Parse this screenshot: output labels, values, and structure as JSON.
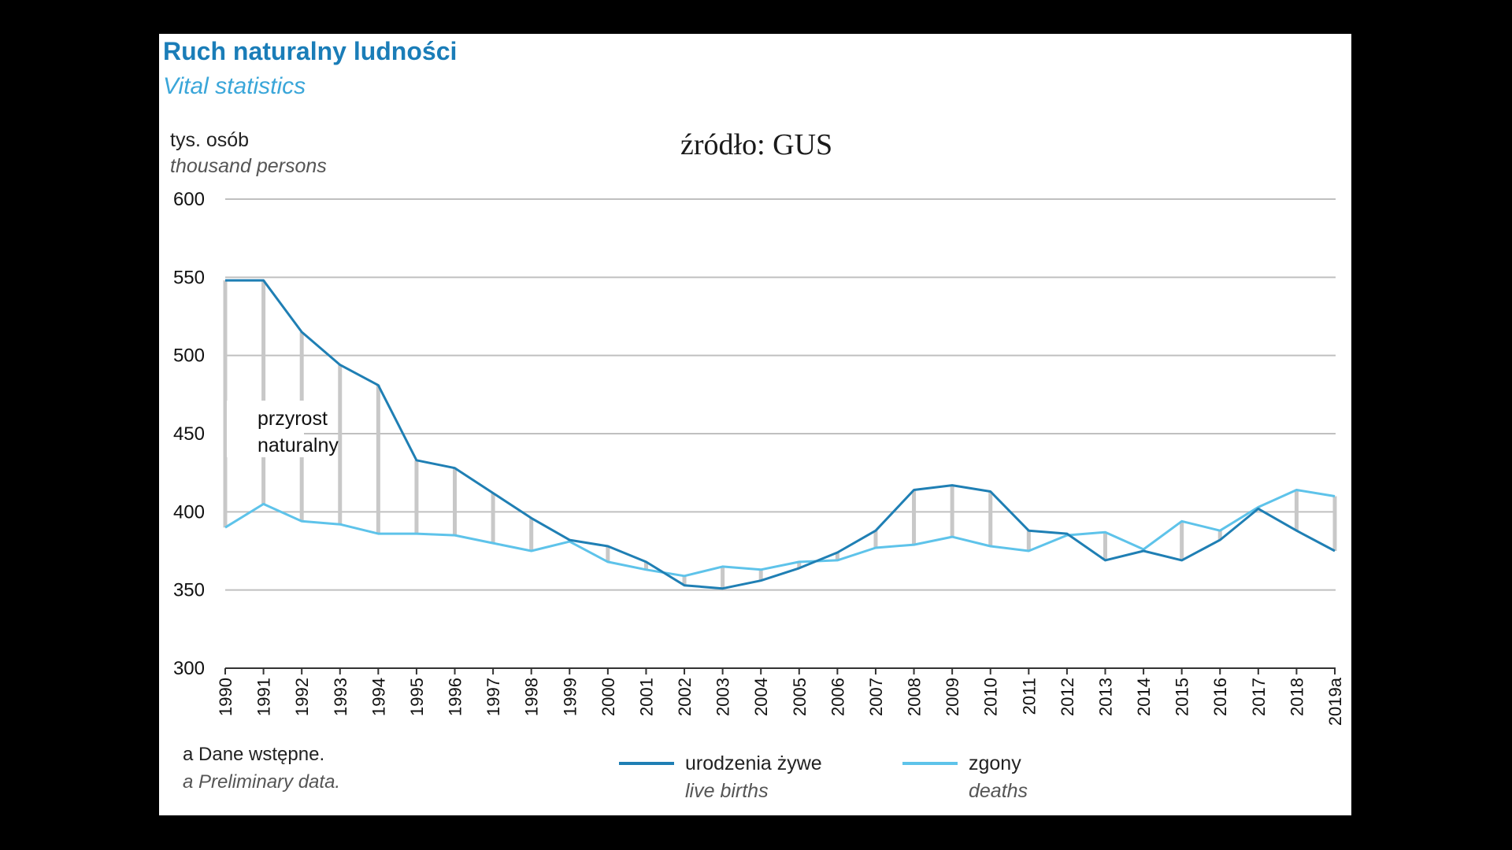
{
  "colors": {
    "background": "#000000",
    "panel": "#ffffff",
    "title": "#1a7db8",
    "subtitle": "#3aa6d9",
    "births": "#1f7fb4",
    "deaths": "#5ec3ea",
    "gap_bar": "#c8c8c8",
    "gridline": "#c0c0c0",
    "axis": "#333333"
  },
  "header": {
    "title_pl": "Ruch naturalny ludności",
    "title_en": "Vital statistics",
    "unit_pl": "tys. osób",
    "unit_en": "thousand persons",
    "source": "źródło: GUS"
  },
  "annotation": {
    "line1": "przyrost",
    "line2": "naturalny"
  },
  "footnote": {
    "pl": "a Dane wstępne.",
    "en": "a Preliminary data."
  },
  "legend": {
    "births_pl": "urodzenia żywe",
    "births_en": "live births",
    "deaths_pl": "zgony",
    "deaths_en": "deaths"
  },
  "chart_data": {
    "type": "line",
    "title": "Ruch naturalny ludności",
    "subtitle": "Vital statistics",
    "ylabel": "tys. osób / thousand persons",
    "ylim": [
      300,
      600
    ],
    "yticks": [
      300,
      350,
      400,
      450,
      500,
      550,
      600
    ],
    "grid": true,
    "legend_position": "bottom",
    "x": [
      "1990",
      "1991",
      "1992",
      "1993",
      "1994",
      "1995",
      "1996",
      "1997",
      "1998",
      "1999",
      "2000",
      "2001",
      "2002",
      "2003",
      "2004",
      "2005",
      "2006",
      "2007",
      "2008",
      "2009",
      "2010",
      "2011",
      "2012",
      "2013",
      "2014",
      "2015",
      "2016",
      "2017",
      "2018",
      "2019a"
    ],
    "series": [
      {
        "name": "urodzenia żywe / live births",
        "values": [
          548,
          548,
          515,
          494,
          481,
          433,
          428,
          412,
          396,
          382,
          378,
          368,
          353,
          351,
          356,
          364,
          374,
          388,
          414,
          417,
          413,
          388,
          386,
          369,
          375,
          369,
          382,
          402,
          388,
          375
        ]
      },
      {
        "name": "zgony / deaths",
        "values": [
          390,
          405,
          394,
          392,
          386,
          386,
          385,
          380,
          375,
          381,
          368,
          363,
          359,
          365,
          363,
          368,
          369,
          377,
          379,
          384,
          378,
          375,
          385,
          387,
          376,
          394,
          388,
          403,
          414,
          410
        ]
      }
    ]
  }
}
